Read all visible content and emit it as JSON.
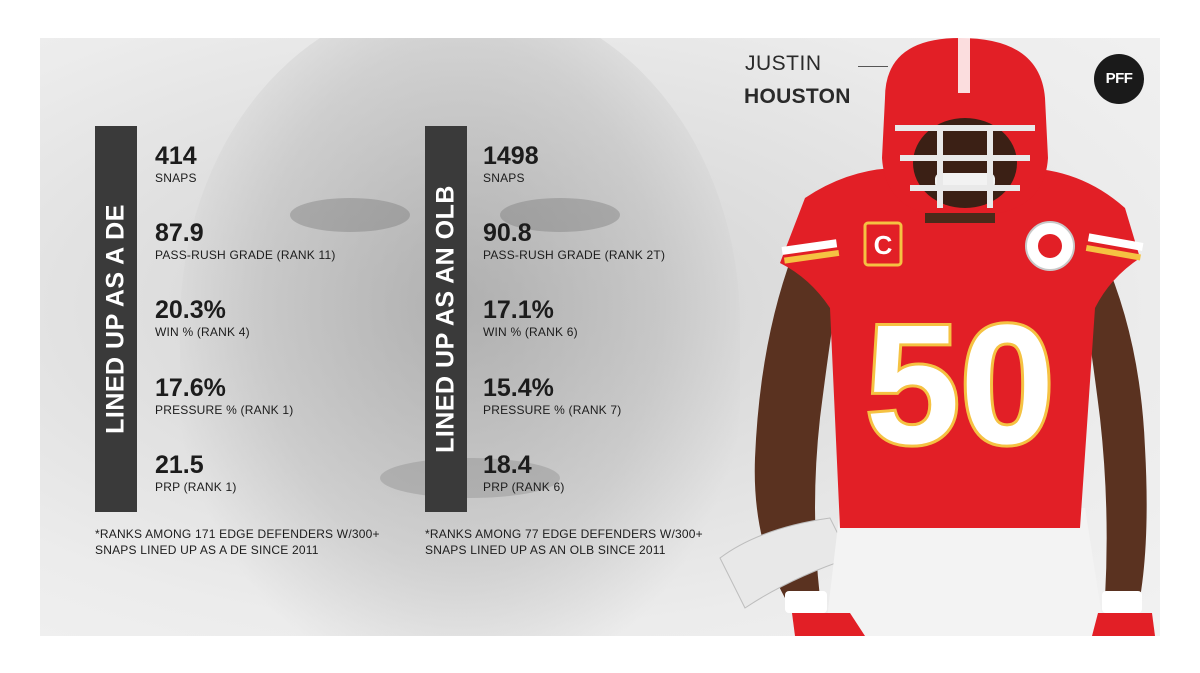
{
  "header": {
    "first_name": "JUSTIN",
    "last_name": "HOUSTON",
    "logo_text": "PFF"
  },
  "left": {
    "bar_label": "LINED UP AS A DE",
    "stats": [
      {
        "value": "414",
        "label": "SNAPS"
      },
      {
        "value": "87.9",
        "label": "PASS-RUSH GRADE (RANK 11)"
      },
      {
        "value": "20.3%",
        "label": "WIN % (RANK 4)"
      },
      {
        "value": "17.6%",
        "label": "PRESSURE % (RANK 1)"
      },
      {
        "value": "21.5",
        "label": "PRP (RANK 1)"
      }
    ],
    "footnote_1": "*RANKS AMONG 171 EDGE DEFENDERS W/300+",
    "footnote_2": "SNAPS LINED UP AS A DE SINCE 2011"
  },
  "right": {
    "bar_label": "LINED UP AS AN OLB",
    "stats": [
      {
        "value": "1498",
        "label": "SNAPS"
      },
      {
        "value": "90.8",
        "label": "PASS-RUSH GRADE (RANK 2T)"
      },
      {
        "value": "17.1%",
        "label": "WIN % (RANK 6)"
      },
      {
        "value": "15.4%",
        "label": "PRESSURE % (RANK 7)"
      },
      {
        "value": "18.4",
        "label": "PRP (RANK 6)"
      }
    ],
    "footnote_1": "*RANKS AMONG 77 EDGE DEFENDERS W/300+",
    "footnote_2": "SNAPS LINED UP AS AN OLB SINCE 2011"
  },
  "player": {
    "jersey_number": "50",
    "captain_patch": "C"
  },
  "colors": {
    "bar": "#3a3a3a",
    "jersey_red": "#e21f26",
    "jersey_gold": "#f5c242",
    "text": "#1c1c1c"
  }
}
